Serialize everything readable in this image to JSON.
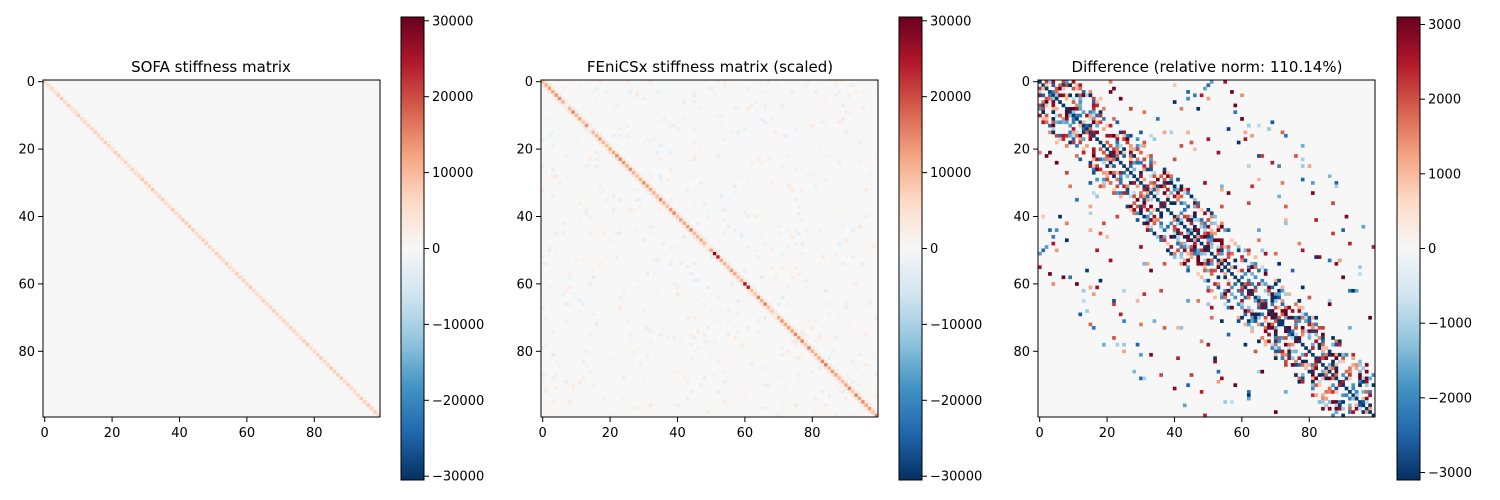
{
  "chart_data": [
    {
      "type": "heatmap",
      "title": "SOFA stiffness matrix",
      "size": 100,
      "x_ticks": [
        0,
        20,
        40,
        60,
        80
      ],
      "y_ticks": [
        0,
        20,
        40,
        60,
        80
      ],
      "x_tick_labels": [
        "0",
        "20",
        "40",
        "60",
        "80"
      ],
      "y_tick_labels": [
        "0",
        "20",
        "40",
        "60",
        "80"
      ],
      "colorbar_range": [
        -30500,
        30500
      ],
      "colorbar_ticks": [
        30000,
        20000,
        10000,
        0,
        -10000,
        -20000,
        -30000
      ],
      "colorbar_tick_labels": [
        "30000",
        "20000",
        "10000",
        "0",
        "−10000",
        "−20000",
        "−30000"
      ],
      "background_value": 0,
      "diagonal_value": 7000,
      "pattern": "diagonal"
    },
    {
      "type": "heatmap",
      "title": "FEniCSx stiffness matrix (scaled)",
      "size": 100,
      "x_ticks": [
        0,
        20,
        40,
        60,
        80
      ],
      "y_ticks": [
        0,
        20,
        40,
        60,
        80
      ],
      "x_tick_labels": [
        "0",
        "20",
        "40",
        "60",
        "80"
      ],
      "y_tick_labels": [
        "0",
        "20",
        "40",
        "60",
        "80"
      ],
      "colorbar_range": [
        -30500,
        30500
      ],
      "colorbar_ticks": [
        30000,
        20000,
        10000,
        0,
        -10000,
        -20000,
        -30000
      ],
      "colorbar_tick_labels": [
        "30000",
        "20000",
        "10000",
        "0",
        "−10000",
        "−20000",
        "−30000"
      ],
      "background_value": 0,
      "diagonal_value": 12000,
      "diagonal_peaks": [
        [
          51,
          28000
        ],
        [
          52,
          24000
        ],
        [
          60,
          26000
        ],
        [
          61,
          24000
        ]
      ],
      "pattern": "diagonal_with_faint_offdiagonal"
    },
    {
      "type": "heatmap",
      "title": "Difference (relative norm: 110.14%)",
      "size": 100,
      "x_ticks": [
        0,
        20,
        40,
        60,
        80
      ],
      "y_ticks": [
        0,
        20,
        40,
        60,
        80
      ],
      "x_tick_labels": [
        "0",
        "20",
        "40",
        "60",
        "80"
      ],
      "y_tick_labels": [
        "0",
        "20",
        "40",
        "60",
        "80"
      ],
      "colorbar_range": [
        -3100,
        3100
      ],
      "colorbar_ticks": [
        3000,
        2000,
        1000,
        0,
        -1000,
        -2000,
        -3000
      ],
      "colorbar_tick_labels": [
        "3000",
        "2000",
        "1000",
        "0",
        "−1000",
        "−2000",
        "−3000"
      ],
      "background_value": 0,
      "diagonal_value": -3000,
      "pattern": "diagonal_negative_with_block_structure"
    }
  ],
  "colors": {
    "colormap": "RdBu_r",
    "stops": [
      "#053061",
      "#2166ac",
      "#4393c3",
      "#92c5de",
      "#d1e5f0",
      "#f7f7f7",
      "#fddbc7",
      "#f4a582",
      "#d6604d",
      "#b2182b",
      "#67001f"
    ],
    "background_cell": "#f7f7f7"
  }
}
